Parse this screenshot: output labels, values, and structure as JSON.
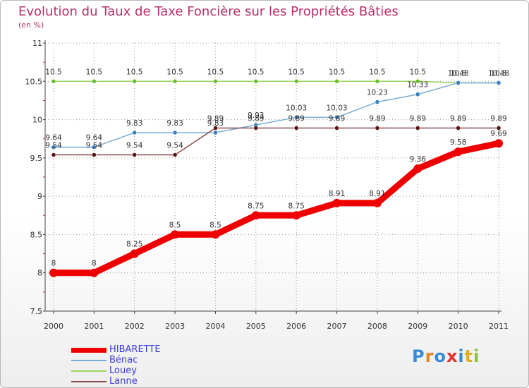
{
  "title": "Evolution du Taux de Taxe Foncière sur les Propriétés Bâties",
  "subtitle": "(en %)",
  "brand": "Proxiti",
  "colors": {
    "title": "#b5306a",
    "legend_text": "#3b3bd8",
    "grid": "#9a9a9a",
    "axis": "#444444"
  },
  "chart_data": {
    "type": "line",
    "title": "Evolution du Taux de Taxe Foncière sur les Propriétés Bâties",
    "ylabel": "(en %)",
    "xlabel": "",
    "ylim": [
      7.5,
      11
    ],
    "yticks": [
      "11",
      "10.5",
      "10",
      "9.5",
      "9",
      "8.5",
      "8",
      "7.5"
    ],
    "x": [
      "2000",
      "2001",
      "2002",
      "2003",
      "2004",
      "2005",
      "2006",
      "2007",
      "2008",
      "2009",
      "2010",
      "2011"
    ],
    "series": [
      {
        "name": "Louey",
        "color": "#99d65a",
        "marker": "#6bbf2f",
        "values": [
          10.5,
          10.5,
          10.5,
          10.5,
          10.5,
          10.5,
          10.5,
          10.5,
          10.5,
          10.5,
          10.48,
          10.48
        ],
        "labels": [
          "10.5",
          "10.5",
          "10.5",
          "10.5",
          "10.5",
          "10.5",
          "10.5",
          "10.5",
          "10.5",
          "10.5",
          "10.5",
          "10.5"
        ]
      },
      {
        "name": "Bénac",
        "color": "#7aaed6",
        "marker": "#3a80c0",
        "values": [
          9.64,
          9.64,
          9.83,
          9.83,
          9.83,
          9.93,
          10.03,
          10.03,
          10.23,
          10.33,
          10.48,
          10.48
        ],
        "labels": [
          "9.64",
          "9.64",
          "9.83",
          "9.83",
          "9.83",
          "9.93",
          "10.03",
          "10.03",
          "10.23",
          "10.33",
          "10.48",
          "10.48"
        ]
      },
      {
        "name": "Lanne",
        "color": "#8a4a4a",
        "marker": "#5a1414",
        "values": [
          9.54,
          9.54,
          9.54,
          9.54,
          9.89,
          9.89,
          9.89,
          9.89,
          9.89,
          9.89,
          9.89,
          9.89
        ],
        "labels": [
          "9.54",
          "9.54",
          "9.54",
          "9.54",
          "9.89",
          "9.89",
          "9.89",
          "9.89",
          "9.89",
          "9.89",
          "9.89",
          "9.89"
        ]
      },
      {
        "name": "HIBARETTE",
        "color": "#ee0000",
        "marker": "#ee0000",
        "values": [
          8,
          8,
          8.25,
          8.5,
          8.5,
          8.75,
          8.75,
          8.91,
          8.91,
          9.36,
          9.58,
          9.69
        ],
        "labels": [
          "8",
          "8",
          "8.25",
          "8.5",
          "8.5",
          "8.75",
          "8.75",
          "8.91",
          "8.91",
          "9.36",
          "9.58",
          "9.69"
        ]
      }
    ],
    "legend": [
      {
        "label": "HIBARETTE",
        "color": "#ee0000"
      },
      {
        "label": "Bénac",
        "color": "#7aaed6"
      },
      {
        "label": "Louey",
        "color": "#99d65a"
      },
      {
        "label": "Lanne",
        "color": "#8a4a4a"
      }
    ],
    "legend_position": "bottom-left",
    "grid": true
  }
}
